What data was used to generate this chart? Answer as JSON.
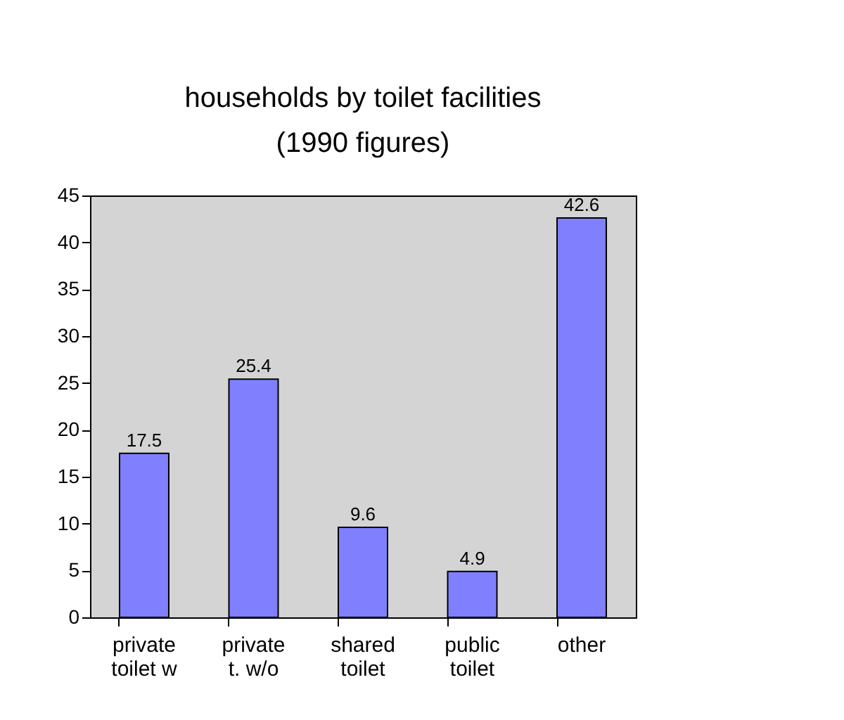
{
  "chart_data": {
    "type": "bar",
    "title": "households by toilet facilities (1990 figures)",
    "categories": [
      "private\ntoilet w",
      "private\nt. w/o",
      "shared\ntoilet",
      "public\ntoilet",
      "other"
    ],
    "values": [
      17.5,
      25.4,
      9.6,
      4.9,
      42.6
    ],
    "color": "#8080ff",
    "ylim": [
      0,
      45
    ],
    "yticks": [
      0,
      5,
      10,
      15,
      20,
      25,
      30,
      35,
      40,
      45
    ],
    "grid": false,
    "data_labels": true
  }
}
